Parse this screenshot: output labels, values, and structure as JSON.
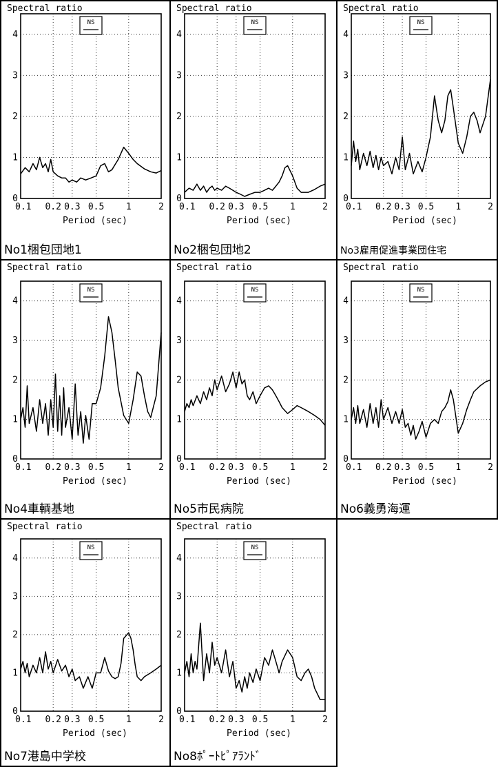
{
  "axis": {
    "ylabel": "Spectral ratio",
    "xlabel": "Period (sec)",
    "x_ticks": [
      0.1,
      0.2,
      0.3,
      0.5,
      1,
      2
    ],
    "x_tick_labels": [
      "0.1",
      "0.2",
      "0.3",
      "0.5",
      "1",
      "2"
    ],
    "y_ticks": [
      0,
      1,
      2,
      3,
      4
    ],
    "y_tick_labels": [
      "0",
      "1",
      "2",
      "3",
      "4"
    ],
    "xscale": "log",
    "xlim": [
      0.1,
      2
    ],
    "ylim": [
      0,
      4.5
    ],
    "legend_label": "NS",
    "legend_position": "top-center",
    "grid": "dotted"
  },
  "chart_data": [
    {
      "type": "line",
      "site": "No1梱包団地1",
      "series": [
        {
          "x": [
            0.1,
            0.11,
            0.12,
            0.13,
            0.14,
            0.15,
            0.16,
            0.17,
            0.18,
            0.19,
            0.2,
            0.22,
            0.24,
            0.26,
            0.28,
            0.3,
            0.33,
            0.36,
            0.4,
            0.45,
            0.5,
            0.55,
            0.6,
            0.65,
            0.7,
            0.8,
            0.9,
            1.0,
            1.1,
            1.2,
            1.4,
            1.6,
            1.8,
            2.0
          ],
          "y": [
            0.6,
            0.75,
            0.65,
            0.85,
            0.7,
            1.0,
            0.75,
            0.85,
            0.65,
            0.95,
            0.65,
            0.55,
            0.5,
            0.5,
            0.4,
            0.45,
            0.4,
            0.5,
            0.45,
            0.5,
            0.55,
            0.8,
            0.85,
            0.65,
            0.7,
            0.95,
            1.25,
            1.1,
            0.95,
            0.85,
            0.72,
            0.65,
            0.62,
            0.68
          ]
        }
      ]
    },
    {
      "type": "line",
      "site": "No2梱包団地2",
      "series": [
        {
          "x": [
            0.1,
            0.11,
            0.12,
            0.13,
            0.14,
            0.15,
            0.16,
            0.17,
            0.18,
            0.19,
            0.2,
            0.22,
            0.24,
            0.26,
            0.28,
            0.3,
            0.33,
            0.36,
            0.4,
            0.45,
            0.5,
            0.55,
            0.6,
            0.65,
            0.7,
            0.75,
            0.8,
            0.85,
            0.9,
            1.0,
            1.1,
            1.2,
            1.4,
            1.6,
            1.8,
            2.0
          ],
          "y": [
            0.15,
            0.25,
            0.2,
            0.35,
            0.2,
            0.3,
            0.15,
            0.25,
            0.3,
            0.2,
            0.25,
            0.2,
            0.3,
            0.25,
            0.2,
            0.15,
            0.1,
            0.05,
            0.1,
            0.15,
            0.15,
            0.2,
            0.25,
            0.2,
            0.3,
            0.4,
            0.55,
            0.75,
            0.8,
            0.55,
            0.25,
            0.15,
            0.15,
            0.22,
            0.3,
            0.35
          ]
        }
      ]
    },
    {
      "type": "line",
      "site": "No3雇用促進事業団住宅",
      "series": [
        {
          "x": [
            0.1,
            0.105,
            0.11,
            0.115,
            0.12,
            0.13,
            0.14,
            0.15,
            0.16,
            0.17,
            0.18,
            0.19,
            0.2,
            0.22,
            0.24,
            0.26,
            0.28,
            0.3,
            0.32,
            0.35,
            0.38,
            0.42,
            0.46,
            0.5,
            0.55,
            0.6,
            0.65,
            0.7,
            0.75,
            0.8,
            0.85,
            0.9,
            1.0,
            1.1,
            1.2,
            1.3,
            1.4,
            1.5,
            1.6,
            1.8,
            2.0
          ],
          "y": [
            0.8,
            1.4,
            0.9,
            1.2,
            0.7,
            1.1,
            0.8,
            1.15,
            0.75,
            1.05,
            0.7,
            1.0,
            0.8,
            0.9,
            0.6,
            1.0,
            0.7,
            1.5,
            0.7,
            1.1,
            0.6,
            0.9,
            0.65,
            1.0,
            1.5,
            2.5,
            1.9,
            1.6,
            1.9,
            2.5,
            2.65,
            2.2,
            1.35,
            1.1,
            1.5,
            2.0,
            2.1,
            1.9,
            1.6,
            2.0,
            2.9
          ]
        }
      ]
    },
    {
      "type": "line",
      "site": "No4車輌基地",
      "series": [
        {
          "x": [
            0.1,
            0.105,
            0.11,
            0.115,
            0.12,
            0.13,
            0.14,
            0.15,
            0.16,
            0.17,
            0.18,
            0.19,
            0.2,
            0.21,
            0.22,
            0.23,
            0.24,
            0.25,
            0.26,
            0.28,
            0.3,
            0.32,
            0.34,
            0.36,
            0.38,
            0.4,
            0.43,
            0.46,
            0.5,
            0.55,
            0.6,
            0.65,
            0.7,
            0.75,
            0.8,
            0.9,
            1.0,
            1.1,
            1.2,
            1.3,
            1.4,
            1.5,
            1.6,
            1.8,
            2.0
          ],
          "y": [
            1.0,
            1.3,
            0.8,
            1.85,
            0.9,
            1.3,
            0.7,
            1.5,
            0.9,
            1.4,
            0.6,
            1.5,
            0.8,
            2.15,
            0.7,
            1.6,
            0.6,
            1.8,
            0.8,
            1.3,
            0.5,
            1.9,
            0.6,
            1.2,
            0.4,
            1.1,
            0.5,
            1.4,
            1.4,
            1.8,
            2.6,
            3.6,
            3.2,
            2.5,
            1.8,
            1.1,
            0.9,
            1.5,
            2.2,
            2.1,
            1.6,
            1.2,
            1.05,
            1.6,
            3.2
          ]
        }
      ]
    },
    {
      "type": "line",
      "site": "No5市民病院",
      "series": [
        {
          "x": [
            0.1,
            0.105,
            0.11,
            0.115,
            0.12,
            0.13,
            0.14,
            0.15,
            0.16,
            0.17,
            0.18,
            0.19,
            0.2,
            0.22,
            0.24,
            0.26,
            0.28,
            0.3,
            0.32,
            0.34,
            0.36,
            0.38,
            0.4,
            0.43,
            0.46,
            0.5,
            0.55,
            0.6,
            0.65,
            0.7,
            0.75,
            0.8,
            0.9,
            1.0,
            1.1,
            1.2,
            1.4,
            1.6,
            1.8,
            2.0
          ],
          "y": [
            1.2,
            1.4,
            1.3,
            1.5,
            1.35,
            1.6,
            1.4,
            1.7,
            1.5,
            1.8,
            1.6,
            2.0,
            1.75,
            2.1,
            1.7,
            1.9,
            2.2,
            1.8,
            2.2,
            1.9,
            2.0,
            1.6,
            1.5,
            1.7,
            1.4,
            1.6,
            1.8,
            1.85,
            1.75,
            1.6,
            1.45,
            1.3,
            1.15,
            1.25,
            1.35,
            1.3,
            1.2,
            1.1,
            1.0,
            0.85
          ]
        }
      ]
    },
    {
      "type": "line",
      "site": "No6義勇海運",
      "series": [
        {
          "x": [
            0.1,
            0.105,
            0.11,
            0.115,
            0.12,
            0.13,
            0.14,
            0.15,
            0.16,
            0.17,
            0.18,
            0.19,
            0.2,
            0.22,
            0.24,
            0.26,
            0.28,
            0.3,
            0.32,
            0.34,
            0.36,
            0.38,
            0.4,
            0.43,
            0.46,
            0.5,
            0.55,
            0.6,
            0.65,
            0.7,
            0.75,
            0.8,
            0.85,
            0.9,
            1.0,
            1.1,
            1.2,
            1.3,
            1.4,
            1.6,
            1.8,
            2.0
          ],
          "y": [
            1.0,
            1.3,
            0.9,
            1.35,
            0.9,
            1.25,
            0.8,
            1.4,
            0.9,
            1.3,
            0.8,
            1.5,
            1.0,
            1.3,
            0.9,
            1.2,
            0.9,
            1.25,
            0.8,
            0.9,
            0.6,
            0.85,
            0.5,
            0.7,
            0.95,
            0.55,
            0.9,
            1.0,
            0.9,
            1.2,
            1.3,
            1.45,
            1.75,
            1.5,
            0.65,
            0.9,
            1.25,
            1.5,
            1.7,
            1.85,
            1.95,
            2.0
          ]
        }
      ]
    },
    {
      "type": "line",
      "site": "No7港島中学校",
      "series": [
        {
          "x": [
            0.1,
            0.105,
            0.11,
            0.115,
            0.12,
            0.13,
            0.14,
            0.15,
            0.16,
            0.17,
            0.18,
            0.19,
            0.2,
            0.22,
            0.24,
            0.26,
            0.28,
            0.3,
            0.32,
            0.35,
            0.38,
            0.42,
            0.46,
            0.5,
            0.55,
            0.6,
            0.65,
            0.7,
            0.75,
            0.8,
            0.85,
            0.9,
            1.0,
            1.05,
            1.1,
            1.15,
            1.2,
            1.3,
            1.4,
            1.6,
            1.8,
            2.0
          ],
          "y": [
            1.1,
            1.3,
            1.0,
            1.25,
            0.9,
            1.2,
            1.0,
            1.4,
            1.0,
            1.55,
            1.1,
            1.3,
            1.0,
            1.35,
            1.05,
            1.2,
            0.9,
            1.1,
            0.8,
            0.9,
            0.6,
            0.9,
            0.6,
            1.0,
            1.0,
            1.4,
            1.05,
            0.9,
            0.85,
            0.9,
            1.25,
            1.9,
            2.05,
            1.9,
            1.6,
            1.2,
            0.9,
            0.8,
            0.9,
            1.0,
            1.1,
            1.2
          ]
        }
      ]
    },
    {
      "type": "line",
      "site": "No8ﾎﾟｰﾄﾋﾟｱﾗﾝﾄﾞ",
      "series": [
        {
          "x": [
            0.1,
            0.105,
            0.11,
            0.115,
            0.12,
            0.125,
            0.13,
            0.14,
            0.15,
            0.16,
            0.17,
            0.18,
            0.19,
            0.2,
            0.22,
            0.24,
            0.26,
            0.28,
            0.3,
            0.32,
            0.34,
            0.36,
            0.38,
            0.4,
            0.43,
            0.46,
            0.5,
            0.55,
            0.6,
            0.65,
            0.7,
            0.75,
            0.8,
            0.9,
            1.0,
            1.1,
            1.2,
            1.3,
            1.4,
            1.5,
            1.6,
            1.8,
            2.0
          ],
          "y": [
            1.0,
            1.3,
            0.9,
            1.5,
            1.0,
            1.3,
            1.1,
            2.3,
            0.8,
            1.5,
            1.0,
            1.8,
            1.2,
            1.4,
            1.0,
            1.6,
            0.9,
            1.3,
            0.6,
            0.8,
            0.5,
            0.9,
            0.6,
            1.0,
            0.75,
            1.1,
            0.8,
            1.4,
            1.2,
            1.6,
            1.3,
            1.0,
            1.3,
            1.6,
            1.4,
            0.9,
            0.8,
            1.0,
            1.1,
            0.9,
            0.6,
            0.3,
            0.3
          ]
        }
      ]
    }
  ]
}
